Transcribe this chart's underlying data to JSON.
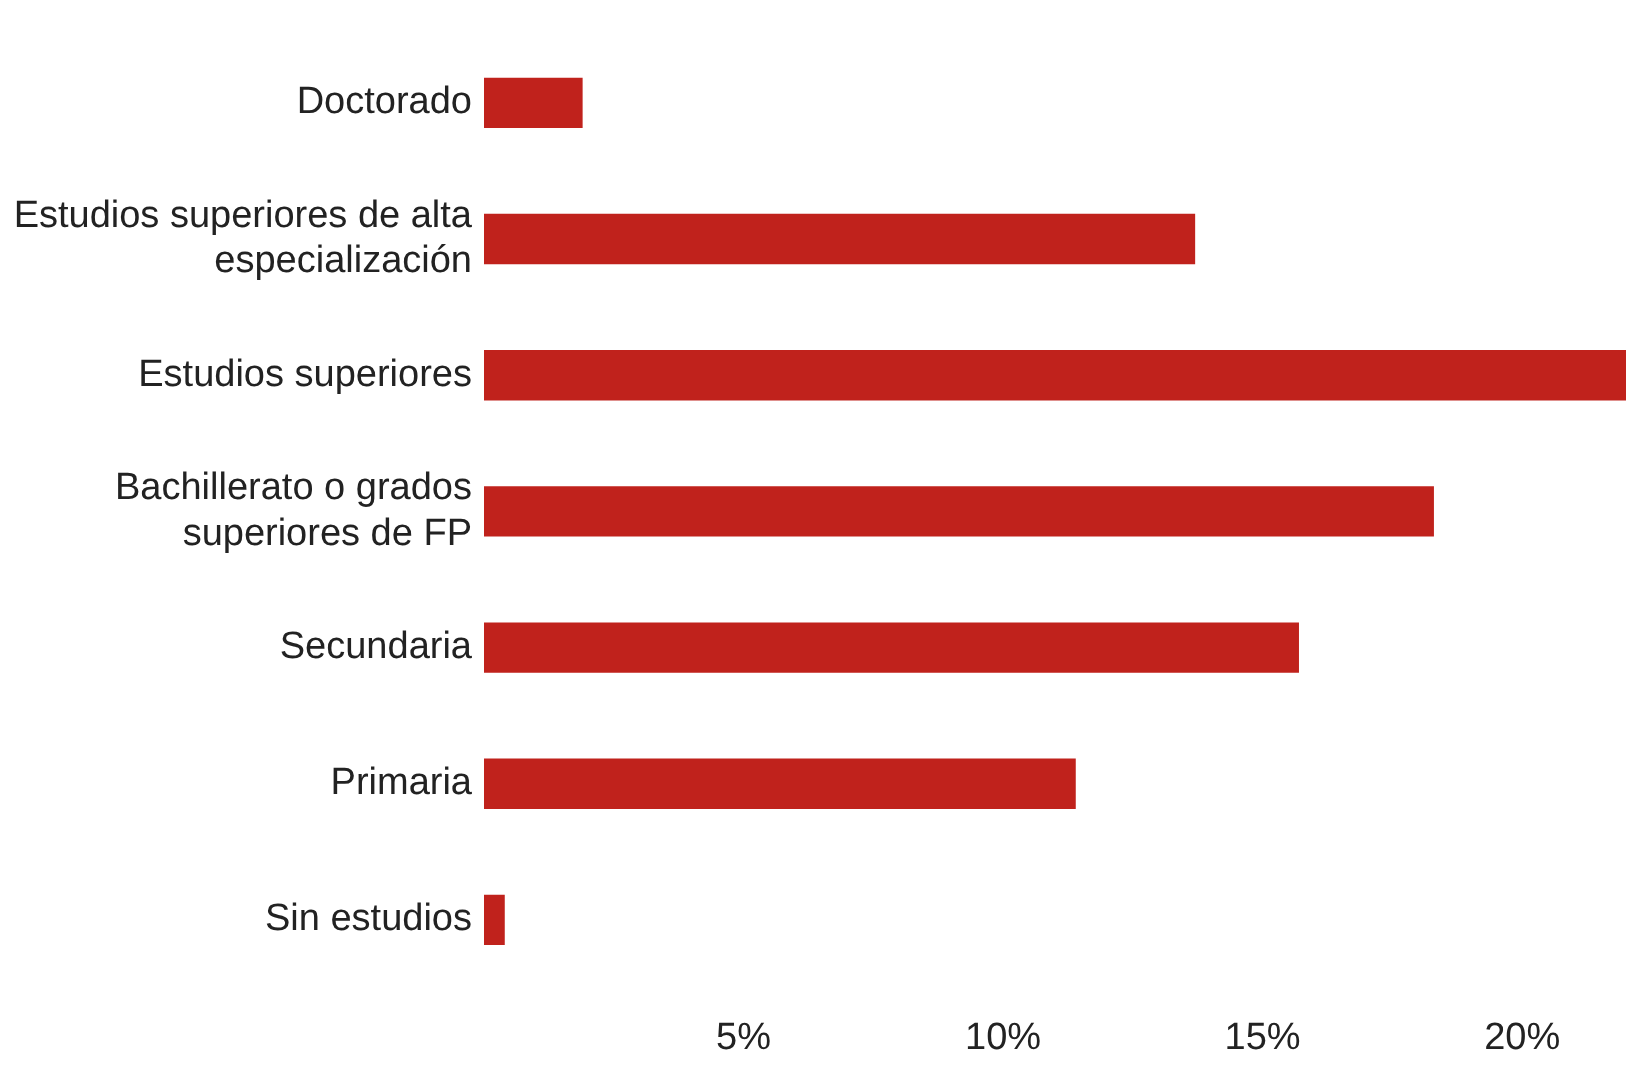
{
  "chart_data": {
    "type": "bar",
    "orientation": "horizontal",
    "categories": [
      "Doctorado",
      "Estudios superiores de alta especialización",
      "Estudios superiores",
      "Bachillerato o grados superiores de FP",
      "Secundaria",
      "Primaria",
      "Sin estudios"
    ],
    "values": [
      1.9,
      13.7,
      22.0,
      18.3,
      15.7,
      11.4,
      0.4
    ],
    "color": "#c0221c",
    "xlim": [
      0,
      22
    ],
    "xticks": [
      {
        "value": 5,
        "label": "5%"
      },
      {
        "value": 10,
        "label": "10%"
      },
      {
        "value": 15,
        "label": "15%"
      },
      {
        "value": 20,
        "label": "20%"
      }
    ],
    "grid": false,
    "legend": false
  }
}
